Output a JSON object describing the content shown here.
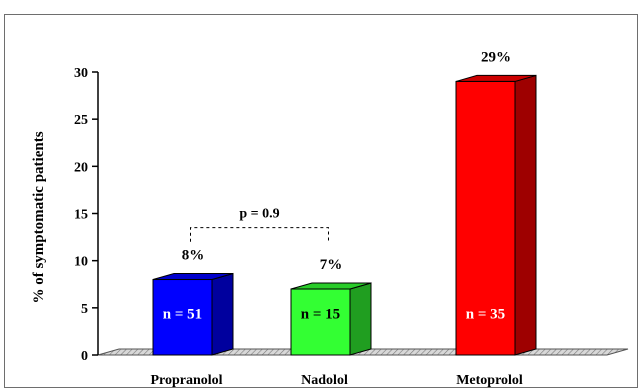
{
  "chart_data": {
    "type": "bar",
    "title": "",
    "xlabel": "",
    "ylabel": "% of symptomatic patients",
    "ylim": [
      0,
      30
    ],
    "yticks": [
      0,
      5,
      10,
      15,
      20,
      25,
      30
    ],
    "categories": [
      "Propranolol",
      "Nadolol",
      "Metoprolol"
    ],
    "values": [
      8,
      7,
      29
    ],
    "value_labels": [
      "8%",
      "7%",
      "29%"
    ],
    "n_labels": [
      "n = 51",
      "n = 15",
      "n = 35"
    ],
    "colors": [
      "#0000ff",
      "#33ff33",
      "#ff0000"
    ],
    "grid": false,
    "legend": "none",
    "annotation": {
      "text": "p =  0.9",
      "between": [
        "Propranolol",
        "Nadolol"
      ]
    }
  }
}
